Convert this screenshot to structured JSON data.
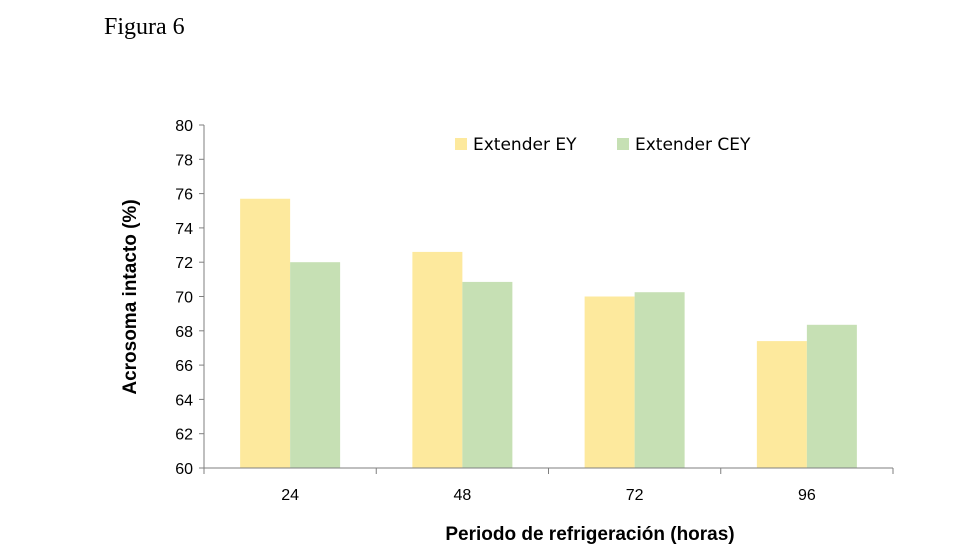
{
  "figure_title": "Figura 6",
  "chart_data": {
    "type": "bar",
    "categories": [
      "24",
      "48",
      "72",
      "96"
    ],
    "series": [
      {
        "name": "Extender EY",
        "color": "#fde99d",
        "values": [
          75.7,
          72.6,
          70.0,
          67.4
        ]
      },
      {
        "name": "Extender CEY",
        "color": "#c6e0b4",
        "values": [
          72.0,
          70.85,
          70.25,
          68.35
        ]
      }
    ],
    "xlabel": "Periodo de refrigeración (horas)",
    "ylabel": "Acrosoma intacto (%)",
    "ylim": [
      60,
      80
    ],
    "yticks": [
      60,
      62,
      64,
      66,
      68,
      70,
      72,
      74,
      76,
      78,
      80
    ],
    "grid": false,
    "legend_position": "top-center"
  }
}
